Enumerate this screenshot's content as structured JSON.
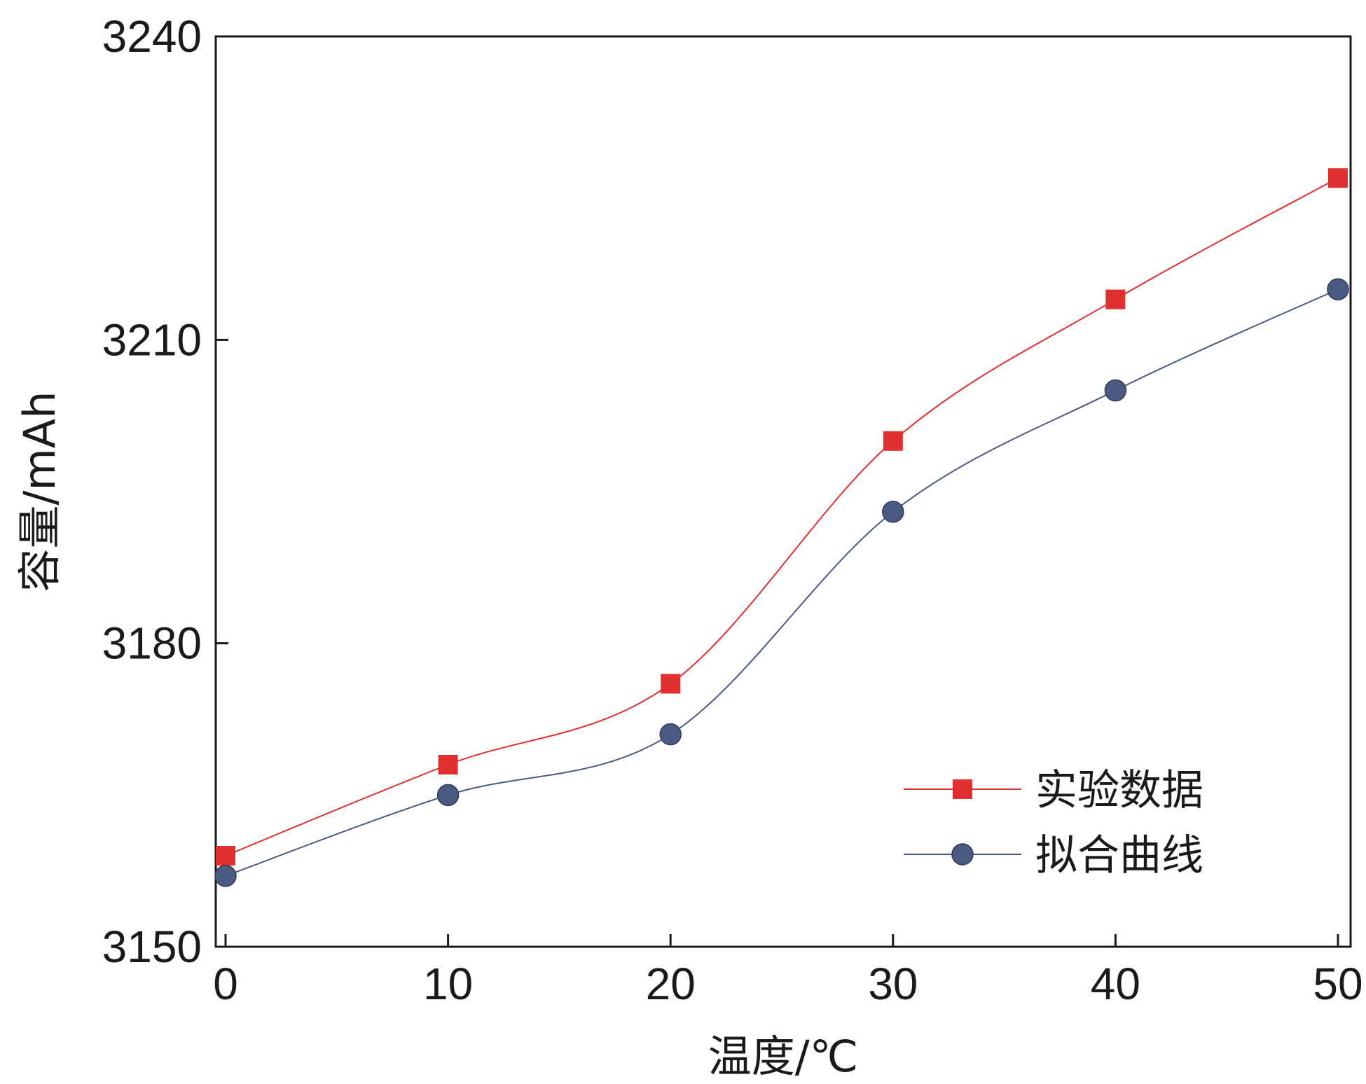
{
  "chart_data": {
    "type": "line",
    "title": "",
    "xlabel": "温度/℃",
    "ylabel": "容量/mAh",
    "x": [
      0,
      10,
      20,
      30,
      40,
      50
    ],
    "xlim": [
      0,
      50
    ],
    "ylim": [
      3150,
      3240
    ],
    "xticks": [
      0,
      10,
      20,
      30,
      40,
      50
    ],
    "yticks": [
      3150,
      3180,
      3210,
      3240
    ],
    "grid": false,
    "legend_position": "lower-right",
    "series": [
      {
        "name": "实验数据",
        "values": [
          3159.0,
          3168.0,
          3176.0,
          3200.0,
          3214.0,
          3226.0
        ],
        "color": "#e03030",
        "marker": "square"
      },
      {
        "name": "拟合曲线",
        "values": [
          3157.0,
          3165.0,
          3171.0,
          3193.0,
          3205.0,
          3215.0
        ],
        "color": "#4a5a80",
        "marker": "circle"
      }
    ]
  }
}
